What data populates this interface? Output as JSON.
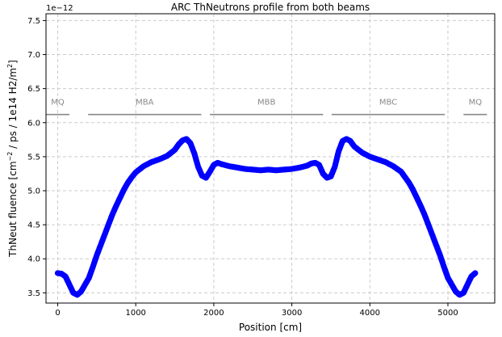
{
  "chart_data": {
    "type": "scatter",
    "title": "ARC ThNeutrons profile from both beams",
    "xlabel": "Position [cm]",
    "ylabel_parts": [
      "ThNeut fluence [cm",
      "−2",
      " / ps / 1e14 H2/m",
      "2",
      "]"
    ],
    "offset_text": "1e−12",
    "xlim": [
      -150,
      5600
    ],
    "ylim": [
      3.35,
      7.6
    ],
    "x_ticks": [
      0,
      1000,
      2000,
      3000,
      4000,
      5000
    ],
    "x_tick_labels": [
      "0",
      "1000",
      "2000",
      "3000",
      "4000",
      "5000"
    ],
    "y_ticks": [
      3.5,
      4.0,
      4.5,
      5.0,
      5.5,
      6.0,
      6.5,
      7.0,
      7.5
    ],
    "y_tick_labels": [
      "3.5",
      "4.0",
      "4.5",
      "5.0",
      "5.5",
      "6.0",
      "6.5",
      "7.0",
      "7.5"
    ],
    "grid": true,
    "point_color": "#0000ff",
    "series_profile": [
      [
        0,
        3.79
      ],
      [
        50,
        3.78
      ],
      [
        100,
        3.74
      ],
      [
        150,
        3.62
      ],
      [
        200,
        3.5
      ],
      [
        250,
        3.47
      ],
      [
        300,
        3.52
      ],
      [
        350,
        3.62
      ],
      [
        400,
        3.72
      ],
      [
        450,
        3.88
      ],
      [
        500,
        4.05
      ],
      [
        550,
        4.2
      ],
      [
        600,
        4.35
      ],
      [
        650,
        4.5
      ],
      [
        700,
        4.65
      ],
      [
        750,
        4.78
      ],
      [
        800,
        4.9
      ],
      [
        850,
        5.02
      ],
      [
        900,
        5.12
      ],
      [
        950,
        5.2
      ],
      [
        1000,
        5.27
      ],
      [
        1100,
        5.36
      ],
      [
        1200,
        5.42
      ],
      [
        1300,
        5.46
      ],
      [
        1400,
        5.51
      ],
      [
        1500,
        5.6
      ],
      [
        1550,
        5.68
      ],
      [
        1600,
        5.74
      ],
      [
        1650,
        5.76
      ],
      [
        1700,
        5.7
      ],
      [
        1750,
        5.55
      ],
      [
        1800,
        5.35
      ],
      [
        1850,
        5.22
      ],
      [
        1900,
        5.19
      ],
      [
        1950,
        5.28
      ],
      [
        2000,
        5.38
      ],
      [
        2050,
        5.41
      ],
      [
        2100,
        5.39
      ],
      [
        2200,
        5.36
      ],
      [
        2300,
        5.34
      ],
      [
        2400,
        5.32
      ],
      [
        2500,
        5.31
      ],
      [
        2600,
        5.3
      ],
      [
        2700,
        5.31
      ],
      [
        2800,
        5.3
      ],
      [
        2900,
        5.31
      ],
      [
        3000,
        5.32
      ],
      [
        3100,
        5.34
      ],
      [
        3200,
        5.37
      ],
      [
        3250,
        5.4
      ],
      [
        3300,
        5.41
      ],
      [
        3350,
        5.38
      ],
      [
        3400,
        5.25
      ],
      [
        3450,
        5.19
      ],
      [
        3500,
        5.21
      ],
      [
        3550,
        5.35
      ],
      [
        3600,
        5.58
      ],
      [
        3650,
        5.73
      ],
      [
        3700,
        5.76
      ],
      [
        3750,
        5.73
      ],
      [
        3800,
        5.65
      ],
      [
        3900,
        5.56
      ],
      [
        4000,
        5.5
      ],
      [
        4100,
        5.46
      ],
      [
        4200,
        5.42
      ],
      [
        4300,
        5.36
      ],
      [
        4400,
        5.28
      ],
      [
        4450,
        5.2
      ],
      [
        4500,
        5.12
      ],
      [
        4550,
        5.02
      ],
      [
        4600,
        4.9
      ],
      [
        4650,
        4.78
      ],
      [
        4700,
        4.65
      ],
      [
        4750,
        4.5
      ],
      [
        4800,
        4.35
      ],
      [
        4850,
        4.2
      ],
      [
        4900,
        4.05
      ],
      [
        4950,
        3.88
      ],
      [
        5000,
        3.72
      ],
      [
        5050,
        3.62
      ],
      [
        5100,
        3.52
      ],
      [
        5150,
        3.47
      ],
      [
        5200,
        3.5
      ],
      [
        5250,
        3.62
      ],
      [
        5300,
        3.74
      ],
      [
        5350,
        3.79
      ]
    ],
    "regions": [
      {
        "label": "MQ",
        "start": -150,
        "end": 150,
        "y": 6.12
      },
      {
        "label": "MBA",
        "start": 390,
        "end": 1840,
        "y": 6.12
      },
      {
        "label": "MBB",
        "start": 1950,
        "end": 3400,
        "y": 6.12
      },
      {
        "label": "MBC",
        "start": 3510,
        "end": 4960,
        "y": 6.12
      },
      {
        "label": "MQ",
        "start": 5200,
        "end": 5500,
        "y": 6.12
      }
    ]
  }
}
